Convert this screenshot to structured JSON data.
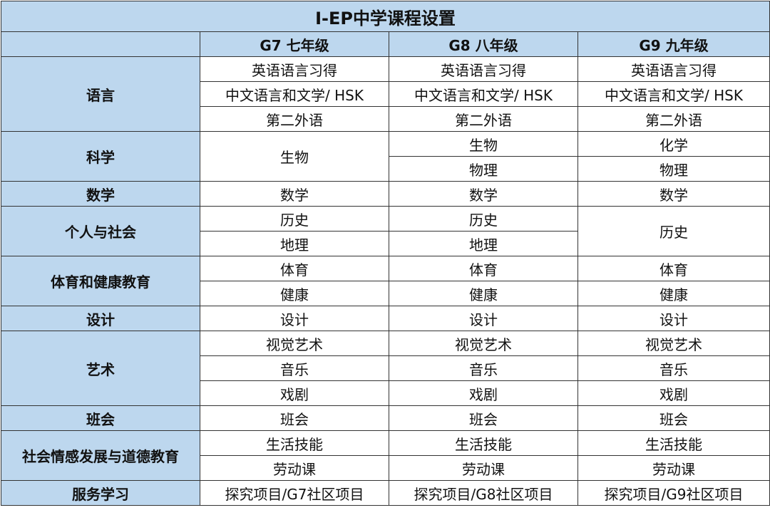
{
  "title": "I-EP中学课程设置",
  "grades": [
    "G7 七年级",
    "G8 八年级",
    "G9 九年级"
  ],
  "subjects": [
    {
      "name": "语言",
      "rows": 3,
      "courses": [
        [
          "英语语言习得",
          "中文语言和文学/ HSK",
          "第二外语"
        ],
        [
          "英语语言习得",
          "中文语言和文学/ HSK",
          "第二外语"
        ],
        [
          "英语语言习得",
          "中文语言和文学/ HSK",
          "第二外语"
        ]
      ]
    },
    {
      "name": "科学",
      "rows": 2,
      "courses": [
        [
          "生物"
        ],
        [
          "生物",
          "物理"
        ],
        [
          "化学",
          "物理"
        ]
      ]
    },
    {
      "name": "数学",
      "rows": 1,
      "courses": [
        [
          "数学"
        ],
        [
          "数学"
        ],
        [
          "数学"
        ]
      ]
    },
    {
      "name": "个人与社会",
      "rows": 2,
      "courses": [
        [
          "历史",
          "地理"
        ],
        [
          "历史",
          "地理"
        ],
        [
          "历史"
        ]
      ]
    },
    {
      "name": "体育和健康教育",
      "rows": 2,
      "courses": [
        [
          "体育",
          "健康"
        ],
        [
          "体育",
          "健康"
        ],
        [
          "体育",
          "健康"
        ]
      ]
    },
    {
      "name": "设计",
      "rows": 1,
      "courses": [
        [
          "设计"
        ],
        [
          "设计"
        ],
        [
          "设计"
        ]
      ]
    },
    {
      "name": "艺术",
      "rows": 3,
      "courses": [
        [
          "视觉艺术",
          "音乐",
          "戏剧"
        ],
        [
          "视觉艺术",
          "音乐",
          "戏剧"
        ],
        [
          "视觉艺术",
          "音乐",
          "戏剧"
        ]
      ]
    },
    {
      "name": "班会",
      "rows": 1,
      "courses": [
        [
          "班会"
        ],
        [
          "班会"
        ],
        [
          "班会"
        ]
      ]
    },
    {
      "name": "社会情感发展与道德教育",
      "rows": 2,
      "courses": [
        [
          "生活技能",
          "劳动课"
        ],
        [
          "生活技能",
          "劳动课"
        ],
        [
          "生活技能",
          "劳动课"
        ]
      ]
    },
    {
      "name": "服务学习",
      "rows": 1,
      "courses": [
        [
          "探究项目/G7社区项目"
        ],
        [
          "探究项目/G8社区项目"
        ],
        [
          "探究项目/G9社区项目"
        ]
      ]
    }
  ]
}
